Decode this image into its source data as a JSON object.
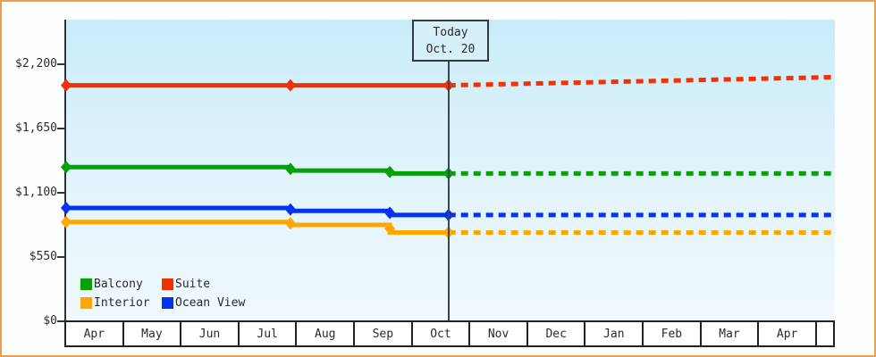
{
  "frame": {
    "border_color": "#e9a24b",
    "plot_bg_top": "#c9ecfa",
    "plot_bg_bottom": "#f0f9fd"
  },
  "today_flag": {
    "line1": "Today",
    "line2": "Oct. 20"
  },
  "chart_data": {
    "type": "line",
    "title": "",
    "xlabel": "",
    "ylabel": "",
    "x_axis": {
      "unit": "month",
      "month_labels": [
        "Apr",
        "May",
        "Jun",
        "Jul",
        "Aug",
        "Sep",
        "Oct",
        "Nov",
        "Dec",
        "Jan",
        "Feb",
        "Mar",
        "Apr"
      ],
      "months_span": 13.37,
      "grid": false
    },
    "y_axis": {
      "ticks": [
        0,
        550,
        1100,
        1650,
        2200
      ],
      "tick_labels": [
        "$0",
        "$550",
        "$1,100",
        "$1,650",
        "$2,200"
      ],
      "range_rendered": [
        0,
        2580
      ]
    },
    "today": {
      "label": "Today",
      "date": "Oct. 20",
      "month_position": 6.65
    },
    "legend": [
      {
        "label": "Balcony",
        "color": "#07a007"
      },
      {
        "label": "Suite",
        "color": "#f23000"
      },
      {
        "label": "Interior",
        "color": "#ffa700"
      },
      {
        "label": "Ocean View",
        "color": "#0433f0"
      }
    ],
    "legend_position": "bottom-left",
    "series": [
      {
        "name": "Suite",
        "color": "#f23000",
        "solid": [
          [
            0,
            2020
          ],
          [
            6.65,
            2020
          ]
        ],
        "dashed": [
          [
            6.65,
            2020
          ],
          [
            13.37,
            2090
          ]
        ],
        "markers": [
          [
            0,
            2020
          ],
          [
            3.9,
            2020
          ],
          [
            6.65,
            2020
          ]
        ]
      },
      {
        "name": "Balcony",
        "color": "#07a007",
        "solid": [
          [
            0,
            1320
          ],
          [
            3.9,
            1320
          ],
          [
            3.9,
            1290
          ],
          [
            5.63,
            1290
          ],
          [
            5.63,
            1265
          ],
          [
            6.65,
            1265
          ]
        ],
        "dashed": [
          [
            6.65,
            1265
          ],
          [
            13.37,
            1265
          ]
        ],
        "markers": [
          [
            0,
            1320
          ],
          [
            3.9,
            1305
          ],
          [
            5.63,
            1278
          ],
          [
            6.65,
            1265
          ]
        ]
      },
      {
        "name": "Ocean View",
        "color": "#0433f0",
        "solid": [
          [
            0,
            970
          ],
          [
            3.9,
            970
          ],
          [
            3.9,
            945
          ],
          [
            5.63,
            945
          ],
          [
            5.63,
            910
          ],
          [
            6.65,
            910
          ]
        ],
        "dashed": [
          [
            6.65,
            910
          ],
          [
            13.37,
            910
          ]
        ],
        "markers": [
          [
            0,
            970
          ],
          [
            3.9,
            958
          ],
          [
            5.63,
            928
          ],
          [
            6.65,
            910
          ]
        ]
      },
      {
        "name": "Interior",
        "color": "#ffa700",
        "solid": [
          [
            0,
            850
          ],
          [
            3.9,
            850
          ],
          [
            3.9,
            825
          ],
          [
            5.63,
            825
          ],
          [
            5.63,
            760
          ],
          [
            6.65,
            760
          ]
        ],
        "dashed": [
          [
            6.65,
            760
          ],
          [
            13.37,
            760
          ]
        ],
        "markers": [
          [
            0,
            850
          ],
          [
            3.9,
            838
          ],
          [
            5.63,
            793
          ],
          [
            6.65,
            760
          ]
        ]
      }
    ],
    "line_style": {
      "solid_until": "today",
      "dashed_after": "today",
      "stroke_width": 5
    }
  }
}
